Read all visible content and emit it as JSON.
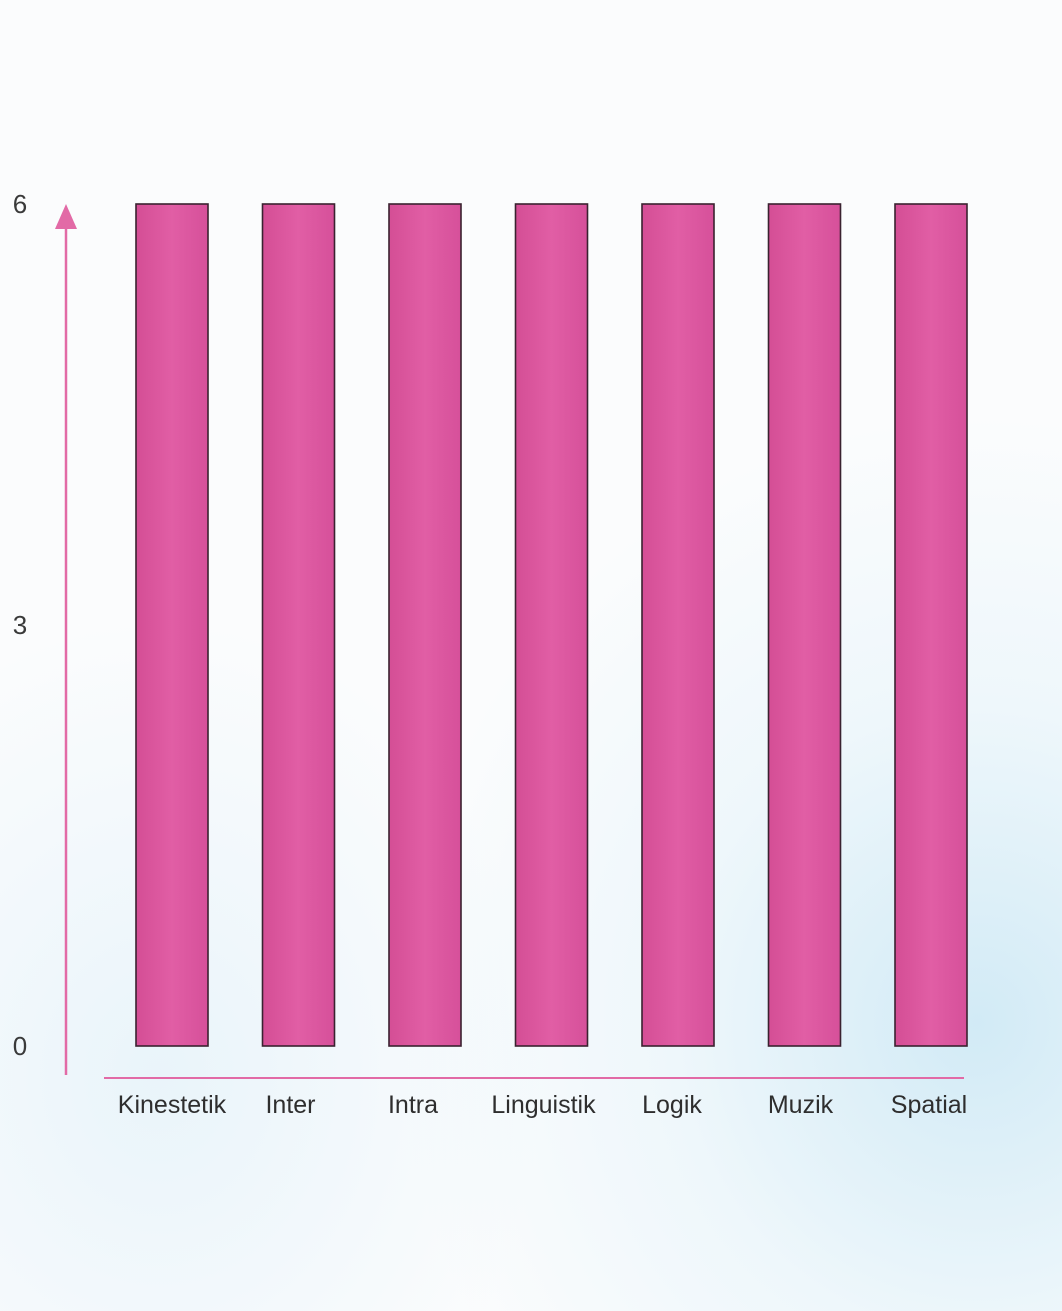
{
  "chart_data": {
    "type": "bar",
    "categories": [
      "Kinestetik",
      "Inter",
      "Intra",
      "Linguistik",
      "Logik",
      "Muzik",
      "Spatial"
    ],
    "values": [
      6,
      6,
      6,
      6,
      6,
      6,
      6
    ],
    "yticks": [
      0,
      3,
      6
    ],
    "ylim": [
      0,
      6
    ],
    "grid": false,
    "colors": {
      "bar": "#de579f",
      "bar_edge": "#3a2230",
      "axis": "#e26aa6",
      "text": "#2e2e2e"
    }
  }
}
